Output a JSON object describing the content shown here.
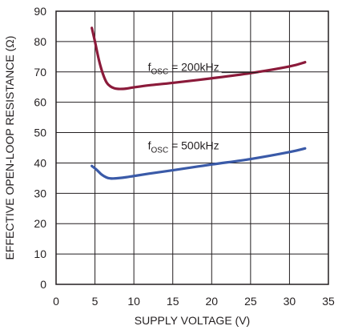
{
  "chart_data": {
    "type": "line",
    "xlabel": "SUPPLY VOLTAGE (V)",
    "ylabel": "EFFECTIVE OPEN-LOOP RESISTANCE (Ω)",
    "xlim": [
      0,
      35
    ],
    "ylim": [
      0,
      90
    ],
    "x_ticks": [
      "0",
      "5",
      "10",
      "15",
      "20",
      "25",
      "30",
      "35"
    ],
    "y_ticks": [
      "0",
      "10",
      "20",
      "30",
      "40",
      "50",
      "60",
      "70",
      "80",
      "90"
    ],
    "grid": true,
    "series": [
      {
        "color": "#8b1a3a",
        "x": [
          4.6,
          5.0,
          5.5,
          6.0,
          6.5,
          7.0,
          7.5,
          8.0,
          8.5,
          9.0,
          10.0,
          12.0,
          15.0,
          20.0,
          25.0,
          30.0,
          32.0
        ],
        "y": [
          84.5,
          80.0,
          74.0,
          69.5,
          66.5,
          65.2,
          64.6,
          64.4,
          64.4,
          64.5,
          64.9,
          65.6,
          66.4,
          67.9,
          69.6,
          71.8,
          73.2
        ]
      },
      {
        "color": "#3a5aa8",
        "x": [
          4.6,
          5.2,
          5.8,
          6.5,
          7.0,
          7.5,
          8.0,
          9.0,
          10.0,
          12.0,
          15.0,
          20.0,
          25.0,
          30.0,
          32.0
        ],
        "y": [
          39.0,
          37.8,
          36.3,
          35.2,
          34.9,
          34.9,
          35.0,
          35.3,
          35.7,
          36.5,
          37.6,
          39.5,
          41.3,
          43.6,
          44.8
        ]
      }
    ],
    "annotations": [
      {
        "prefix": "f",
        "sub": "OSC",
        "suffix": " = 200kHz",
        "x": 11.8,
        "y": 70.3,
        "leader_to": [
          26.0,
          70.3
        ]
      },
      {
        "prefix": "f",
        "sub": "OSC",
        "suffix": " = 500kHz",
        "x": 11.8,
        "y": 44.5,
        "leader_to": null
      }
    ]
  }
}
